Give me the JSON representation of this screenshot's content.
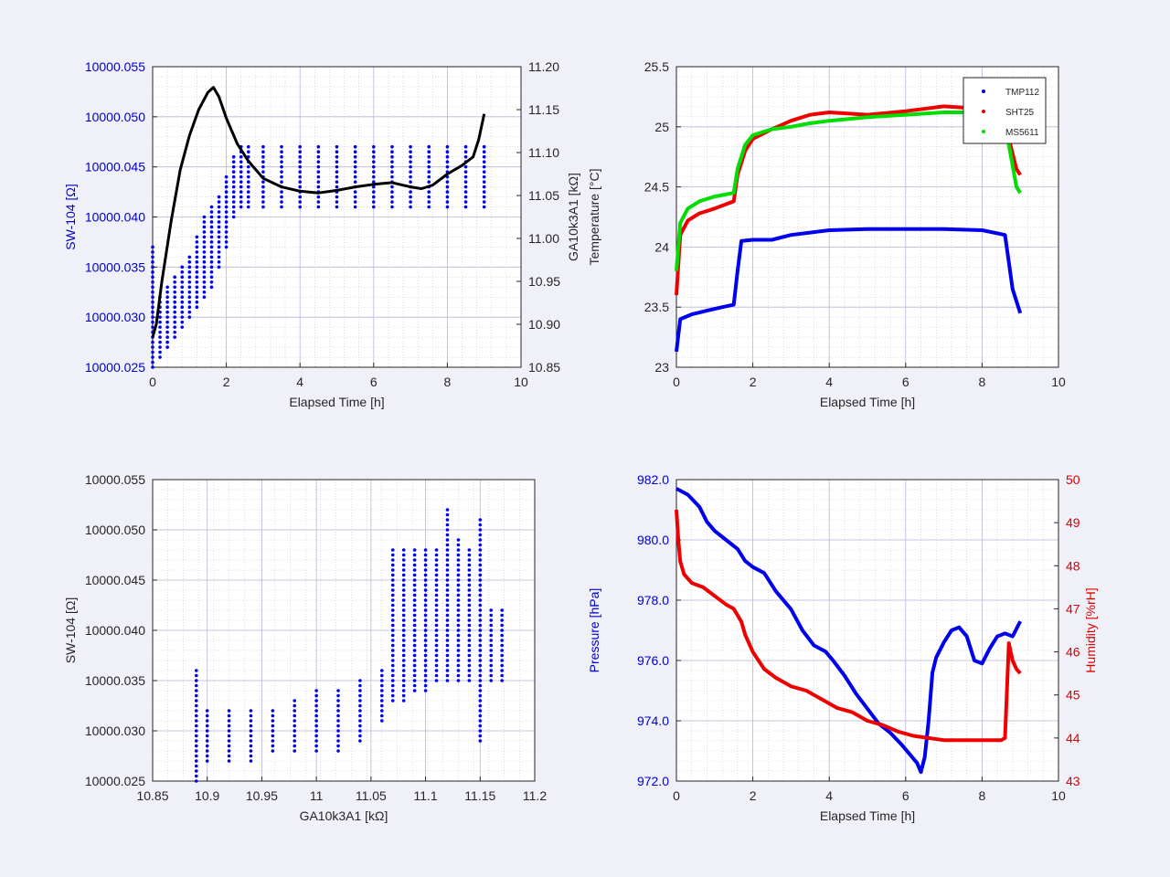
{
  "figure": {
    "background": "#f0f0f8"
  },
  "chart_data": [
    {
      "id": "p1",
      "type": "scatter",
      "xlabel": "Elapsed Time [h]",
      "ylabel": "SW-104 [Ω]",
      "ylabel_right": "GA10k3A1 [kΩ]",
      "xlim": [
        0,
        10
      ],
      "ylim": [
        10000.025,
        10000.055
      ],
      "ylim_right": [
        10.85,
        11.2
      ],
      "xticks": [
        "0",
        "2",
        "4",
        "6",
        "8",
        "10"
      ],
      "yticks": [
        "10000.025",
        "10000.030",
        "10000.035",
        "10000.040",
        "10000.045",
        "10000.050",
        "10000.055"
      ],
      "yticks_right": [
        "10.85",
        "10.90",
        "10.95",
        "11.00",
        "11.05",
        "11.10",
        "11.15",
        "11.20"
      ],
      "grid": true,
      "left_color": "#0000cc",
      "series": [
        {
          "axis": "left",
          "color": "#0000ee",
          "style": "points",
          "x": [
            0.0,
            0.2,
            0.4,
            0.6,
            0.8,
            1.0,
            1.2,
            1.4,
            1.6,
            1.8,
            2.0,
            2.2,
            2.4,
            2.6,
            3.0,
            3.5,
            4.0,
            4.5,
            5.0,
            5.5,
            6.0,
            6.5,
            7.0,
            7.5,
            8.0,
            8.5,
            9.0
          ],
          "y": [
            10000.027,
            10000.029,
            10000.03,
            10000.031,
            10000.032,
            10000.034,
            10000.035,
            10000.036,
            10000.038,
            10000.04,
            10000.042,
            10000.043,
            10000.044,
            10000.044,
            10000.044,
            10000.044,
            10000.045,
            10000.045,
            10000.045,
            10000.045,
            10000.045,
            10000.045,
            10000.045,
            10000.045,
            10000.045,
            10000.045,
            10000.045
          ],
          "y_lo": [
            10000.025,
            10000.026,
            10000.027,
            10000.028,
            10000.029,
            10000.03,
            10000.031,
            10000.032,
            10000.033,
            10000.035,
            10000.037,
            10000.04,
            10000.041,
            10000.041,
            10000.041,
            10000.041,
            10000.041,
            10000.041,
            10000.041,
            10000.041,
            10000.041,
            10000.041,
            10000.041,
            10000.041,
            10000.041,
            10000.041,
            10000.041
          ],
          "y_hi": [
            10000.037,
            10000.032,
            10000.033,
            10000.034,
            10000.035,
            10000.036,
            10000.038,
            10000.04,
            10000.041,
            10000.042,
            10000.044,
            10000.046,
            10000.047,
            10000.047,
            10000.047,
            10000.047,
            10000.047,
            10000.047,
            10000.047,
            10000.047,
            10000.047,
            10000.047,
            10000.047,
            10000.047,
            10000.047,
            10000.047,
            10000.047
          ]
        },
        {
          "axis": "right",
          "color": "#000000",
          "style": "line",
          "x": [
            0.0,
            0.1,
            0.25,
            0.5,
            0.75,
            1.0,
            1.25,
            1.5,
            1.65,
            1.8,
            2.0,
            2.3,
            2.6,
            3.0,
            3.5,
            4.0,
            4.5,
            5.0,
            5.5,
            6.0,
            6.5,
            7.0,
            7.3,
            7.6,
            8.0,
            8.4,
            8.7,
            8.85,
            9.0
          ],
          "y": [
            10.885,
            10.9,
            10.95,
            11.02,
            11.08,
            11.12,
            11.15,
            11.17,
            11.176,
            11.165,
            11.14,
            11.11,
            11.09,
            11.07,
            11.06,
            11.055,
            11.053,
            11.056,
            11.06,
            11.063,
            11.065,
            11.06,
            11.058,
            11.062,
            11.075,
            11.085,
            11.095,
            11.115,
            11.145
          ]
        }
      ]
    },
    {
      "id": "p2",
      "type": "line",
      "xlabel": "Elapsed Time [h]",
      "ylabel": "Temperature [°C]",
      "xlim": [
        0,
        10
      ],
      "ylim": [
        23,
        25.5
      ],
      "xticks": [
        "0",
        "2",
        "4",
        "6",
        "8",
        "10"
      ],
      "yticks": [
        "23",
        "23.5",
        "24",
        "24.5",
        "25",
        "25.5"
      ],
      "grid": true,
      "legend": {
        "placement": "top-right"
      },
      "series": [
        {
          "name": "TMP112",
          "color": "#0000ee",
          "x": [
            0.0,
            0.1,
            0.4,
            0.8,
            1.2,
            1.5,
            1.6,
            1.7,
            2.0,
            2.5,
            3.0,
            3.5,
            4.0,
            5.0,
            6.0,
            7.0,
            8.0,
            8.6,
            8.8,
            9.0
          ],
          "y": [
            23.13,
            23.4,
            23.44,
            23.47,
            23.5,
            23.52,
            23.8,
            24.05,
            24.06,
            24.06,
            24.1,
            24.12,
            24.14,
            24.15,
            24.15,
            24.15,
            24.14,
            24.1,
            23.65,
            23.45
          ]
        },
        {
          "name": "SHT25",
          "color": "#ee0000",
          "x": [
            0.0,
            0.1,
            0.3,
            0.6,
            1.0,
            1.5,
            1.6,
            1.8,
            2.0,
            2.5,
            3.0,
            3.5,
            4.0,
            5.0,
            6.0,
            7.0,
            8.0,
            8.5,
            8.7,
            8.9,
            9.0
          ],
          "y": [
            23.6,
            24.1,
            24.22,
            24.28,
            24.32,
            24.38,
            24.6,
            24.8,
            24.9,
            24.98,
            25.05,
            25.1,
            25.12,
            25.1,
            25.13,
            25.17,
            25.15,
            25.1,
            24.9,
            24.65,
            24.6
          ]
        },
        {
          "name": "MS5611",
          "color": "#00dd00",
          "x": [
            0.0,
            0.1,
            0.3,
            0.6,
            1.0,
            1.5,
            1.6,
            1.8,
            2.0,
            2.5,
            3.0,
            3.5,
            4.0,
            5.0,
            6.0,
            7.0,
            8.0,
            8.5,
            8.7,
            8.9,
            9.0
          ],
          "y": [
            23.8,
            24.2,
            24.32,
            24.38,
            24.42,
            24.45,
            24.65,
            24.85,
            24.93,
            24.98,
            25.0,
            25.03,
            25.05,
            25.08,
            25.1,
            25.12,
            25.12,
            25.1,
            24.85,
            24.5,
            24.45
          ]
        }
      ]
    },
    {
      "id": "p3",
      "type": "scatter",
      "xlabel": "GA10k3A1 [kΩ]",
      "ylabel": "SW-104 [Ω]",
      "xlim": [
        10.85,
        11.2
      ],
      "ylim": [
        10000.025,
        10000.055
      ],
      "xticks": [
        "10.85",
        "10.9",
        "10.95",
        "11",
        "11.05",
        "11.1",
        "11.15",
        "11.2"
      ],
      "yticks": [
        "10000.025",
        "10000.030",
        "10000.035",
        "10000.040",
        "10000.045",
        "10000.050",
        "10000.055"
      ],
      "grid": true,
      "series": [
        {
          "color": "#0000ee",
          "style": "points",
          "x": [
            10.89,
            10.9,
            10.92,
            10.94,
            10.96,
            10.98,
            11.0,
            11.02,
            11.04,
            11.06,
            11.07,
            11.08,
            11.09,
            11.1,
            11.11,
            11.12,
            11.13,
            11.14,
            11.15,
            11.16,
            11.17
          ],
          "y": [
            10000.03,
            10000.03,
            10000.03,
            10000.03,
            10000.03,
            10000.031,
            10000.031,
            10000.032,
            10000.032,
            10000.033,
            10000.04,
            10000.04,
            10000.041,
            10000.041,
            10000.042,
            10000.043,
            10000.043,
            10000.043,
            10000.041,
            10000.039,
            10000.038
          ],
          "y_lo": [
            10000.025,
            10000.027,
            10000.027,
            10000.027,
            10000.028,
            10000.028,
            10000.028,
            10000.028,
            10000.029,
            10000.031,
            10000.033,
            10000.033,
            10000.034,
            10000.034,
            10000.035,
            10000.035,
            10000.035,
            10000.035,
            10000.029,
            10000.035,
            10000.035
          ],
          "y_hi": [
            10000.036,
            10000.032,
            10000.032,
            10000.032,
            10000.032,
            10000.033,
            10000.034,
            10000.034,
            10000.035,
            10000.036,
            10000.048,
            10000.048,
            10000.048,
            10000.048,
            10000.048,
            10000.052,
            10000.049,
            10000.048,
            10000.051,
            10000.042,
            10000.042
          ]
        }
      ]
    },
    {
      "id": "p4",
      "type": "line",
      "xlabel": "Elapsed Time [h]",
      "ylabel": "Pressure [hPa]",
      "ylabel_right": "Humidity [%rH]",
      "xlim": [
        0,
        10
      ],
      "ylim": [
        972,
        982
      ],
      "ylim_right": [
        43,
        50
      ],
      "xticks": [
        "0",
        "2",
        "4",
        "6",
        "8",
        "10"
      ],
      "yticks": [
        "972.0",
        "974.0",
        "976.0",
        "978.0",
        "980.0",
        "982.0"
      ],
      "yticks_right": [
        "43",
        "44",
        "45",
        "46",
        "47",
        "48",
        "49",
        "50"
      ],
      "grid": true,
      "left_color": "#0000cc",
      "right_color": "#dd0000",
      "series": [
        {
          "axis": "left",
          "color": "#0000ee",
          "x": [
            0.0,
            0.3,
            0.6,
            0.8,
            1.0,
            1.3,
            1.6,
            1.8,
            2.0,
            2.3,
            2.6,
            3.0,
            3.3,
            3.6,
            3.9,
            4.1,
            4.4,
            4.7,
            5.0,
            5.3,
            5.6,
            5.9,
            6.1,
            6.3,
            6.4,
            6.5,
            6.6,
            6.7,
            6.8,
            7.0,
            7.2,
            7.4,
            7.6,
            7.8,
            8.0,
            8.2,
            8.4,
            8.6,
            8.8,
            9.0
          ],
          "y": [
            981.7,
            981.5,
            981.1,
            980.6,
            980.3,
            980.0,
            979.7,
            979.3,
            979.1,
            978.9,
            978.3,
            977.7,
            977.0,
            976.5,
            976.3,
            976.0,
            975.5,
            974.9,
            974.4,
            973.9,
            973.6,
            973.2,
            972.9,
            972.6,
            972.3,
            972.8,
            974.0,
            975.6,
            976.1,
            976.6,
            977.0,
            977.1,
            976.8,
            976.0,
            975.9,
            976.4,
            976.8,
            976.9,
            976.8,
            977.3
          ]
        },
        {
          "axis": "right",
          "color": "#ee0000",
          "x": [
            0.0,
            0.05,
            0.1,
            0.2,
            0.4,
            0.7,
            1.0,
            1.3,
            1.5,
            1.7,
            1.8,
            2.0,
            2.3,
            2.6,
            3.0,
            3.4,
            3.8,
            4.2,
            4.6,
            5.0,
            5.4,
            5.8,
            6.2,
            6.6,
            7.0,
            7.4,
            7.8,
            8.2,
            8.5,
            8.6,
            8.7,
            8.8,
            8.9,
            9.0
          ],
          "y": [
            49.3,
            48.6,
            48.1,
            47.8,
            47.6,
            47.5,
            47.3,
            47.1,
            47.0,
            46.7,
            46.4,
            46.0,
            45.6,
            45.4,
            45.2,
            45.1,
            44.9,
            44.7,
            44.6,
            44.4,
            44.3,
            44.15,
            44.05,
            44.0,
            43.95,
            43.95,
            43.95,
            43.95,
            43.95,
            44.0,
            46.2,
            45.8,
            45.6,
            45.5
          ]
        }
      ]
    }
  ]
}
